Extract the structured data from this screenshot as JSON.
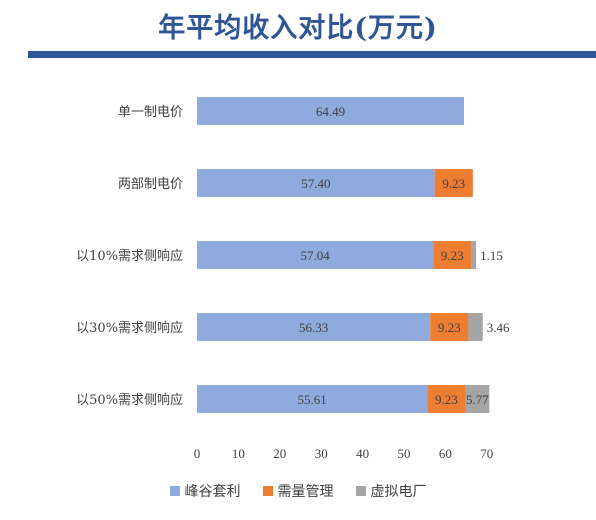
{
  "title": "年平均收入对比(万元)",
  "chart_data": {
    "type": "bar",
    "orientation": "horizontal",
    "stacked": true,
    "categories": [
      "单一制电价",
      "两部制电价",
      "以10%需求侧响应",
      "以30%需求侧响应",
      "以50%需求侧响应"
    ],
    "series": [
      {
        "name": "峰谷套利",
        "color": "#8faadc",
        "values": [
          64.49,
          57.4,
          57.04,
          56.33,
          55.61
        ]
      },
      {
        "name": "需量管理",
        "color": "#ed7d31",
        "values": [
          null,
          9.23,
          9.23,
          9.23,
          9.23
        ]
      },
      {
        "name": "虚拟电厂",
        "color": "#a5a5a5",
        "values": [
          null,
          null,
          1.15,
          3.46,
          5.77
        ]
      }
    ],
    "data_labels": [
      [
        "64.49",
        "",
        ""
      ],
      [
        "57.40",
        "9.23",
        ""
      ],
      [
        "57.04",
        "9.23",
        "1.15"
      ],
      [
        "56.33",
        "9.23",
        "3.46"
      ],
      [
        "55.61",
        "9.23",
        "5.77"
      ]
    ],
    "xlim": [
      0,
      70
    ],
    "xticks": [
      "0",
      "10",
      "20",
      "30",
      "40",
      "50",
      "60",
      "70"
    ],
    "grid": false,
    "legend_position": "bottom"
  }
}
